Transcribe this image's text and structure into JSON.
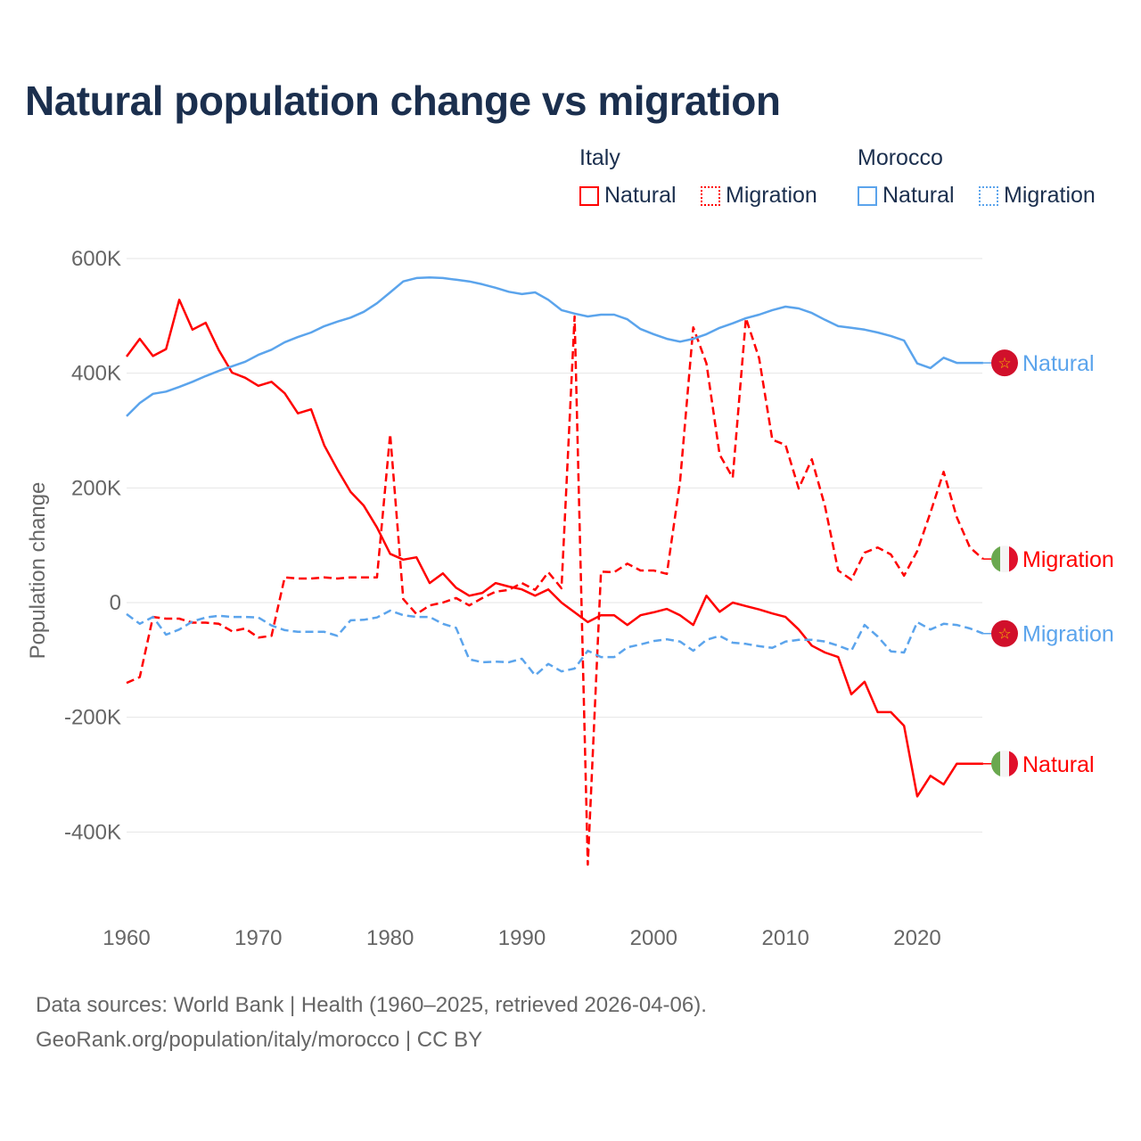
{
  "title": "Natural population change vs migration",
  "legend": {
    "groups": [
      {
        "name": "Italy",
        "items": [
          "Natural",
          "Migration"
        ]
      },
      {
        "name": "Morocco",
        "items": [
          "Natural",
          "Migration"
        ]
      }
    ]
  },
  "colors": {
    "italy": "#ff0000",
    "morocco": "#5ba4ec",
    "title": "#1b2f4e",
    "grid": "#e6e6e6"
  },
  "footer": {
    "line1": "Data sources: World Bank | Health (1960–2025, retrieved 2026-04-06).",
    "line2": "GeoRank.org/population/italy/morocco | CC BY"
  },
  "chart_data": {
    "type": "line",
    "title": "Natural population change vs migration",
    "xlabel": "",
    "ylabel": "Population change",
    "xlim": [
      1960,
      2025
    ],
    "ylim": [
      -460,
      600
    ],
    "y_unit": "thousands",
    "xticks": [
      1960,
      1970,
      1980,
      1990,
      2000,
      2010,
      2020
    ],
    "xtick_labels": [
      "1960",
      "1970",
      "1980",
      "1990",
      "2000",
      "2010",
      "2020"
    ],
    "yticks": [
      600,
      400,
      200,
      0,
      -200,
      -400
    ],
    "ytick_labels": [
      "600K",
      "400K",
      "200K",
      "0",
      "-200K",
      "-400K"
    ],
    "grid": true,
    "x_start": 1960,
    "series": [
      {
        "name": "Natural",
        "country": "Italy",
        "label": "Natural",
        "color": "#ff0000",
        "dash": "solid",
        "values": [
          429,
          460,
          430,
          442,
          528,
          476,
          488,
          440,
          401,
          392,
          378,
          385,
          365,
          330,
          337,
          274,
          232,
          193,
          169,
          131,
          85,
          75,
          79,
          34,
          51,
          26,
          12,
          17,
          34,
          28,
          23,
          12,
          23,
          0,
          -17,
          -34,
          -22,
          -22,
          -39,
          -22,
          -17,
          -11,
          -22,
          -39,
          12,
          -16,
          0,
          -6,
          -12,
          -19,
          -25,
          -47,
          -75,
          -87,
          -95,
          -160,
          -138,
          -191,
          -191,
          -215,
          -338,
          -302,
          -317,
          -281,
          -281,
          -281
        ]
      },
      {
        "name": "Migration",
        "country": "Italy",
        "label": "Migration",
        "color": "#ff0000",
        "dash": "dashed",
        "values": [
          -140,
          -130,
          -25,
          -28,
          -28,
          -35,
          -35,
          -37,
          -50,
          -45,
          -61,
          -58,
          44,
          42,
          42,
          44,
          42,
          44,
          44,
          44,
          294,
          6,
          -20,
          -5,
          0,
          8,
          -5,
          8,
          19,
          22,
          34,
          22,
          53,
          25,
          499,
          -457,
          54,
          53,
          68,
          56,
          56,
          50,
          211,
          480,
          417,
          258,
          218,
          496,
          426,
          284,
          275,
          199,
          250,
          168,
          56,
          40,
          87,
          96,
          84,
          47,
          90,
          157,
          228,
          149,
          96,
          76
        ]
      },
      {
        "name": "Natural",
        "country": "Morocco",
        "label": "Natural",
        "color": "#5ba4ec",
        "dash": "solid",
        "values": [
          325,
          348,
          364,
          368,
          376,
          385,
          395,
          404,
          412,
          420,
          432,
          441,
          454,
          463,
          471,
          482,
          490,
          497,
          507,
          522,
          541,
          560,
          566,
          567,
          566,
          563,
          560,
          555,
          549,
          542,
          538,
          541,
          528,
          510,
          504,
          499,
          502,
          502,
          494,
          477,
          468,
          460,
          455,
          460,
          468,
          479,
          487,
          496,
          502,
          510,
          516,
          513,
          505,
          493,
          482,
          479,
          476,
          471,
          465,
          457,
          417,
          409,
          427,
          418,
          418,
          418
        ]
      },
      {
        "name": "Migration",
        "country": "Morocco",
        "label": "Migration",
        "color": "#5ba4ec",
        "dash": "dashed",
        "values": [
          -20,
          -37,
          -25,
          -56,
          -47,
          -33,
          -26,
          -23,
          -25,
          -25,
          -26,
          -40,
          -48,
          -51,
          -51,
          -51,
          -58,
          -31,
          -30,
          -26,
          -14,
          -22,
          -25,
          -25,
          -37,
          -44,
          -99,
          -104,
          -103,
          -104,
          -98,
          -127,
          -107,
          -120,
          -115,
          -84,
          -95,
          -95,
          -78,
          -73,
          -67,
          -64,
          -68,
          -84,
          -65,
          -58,
          -70,
          -72,
          -76,
          -79,
          -68,
          -65,
          -65,
          -68,
          -75,
          -84,
          -39,
          -59,
          -85,
          -87,
          -34,
          -47,
          -37,
          -39,
          -45,
          -54
        ]
      }
    ]
  }
}
